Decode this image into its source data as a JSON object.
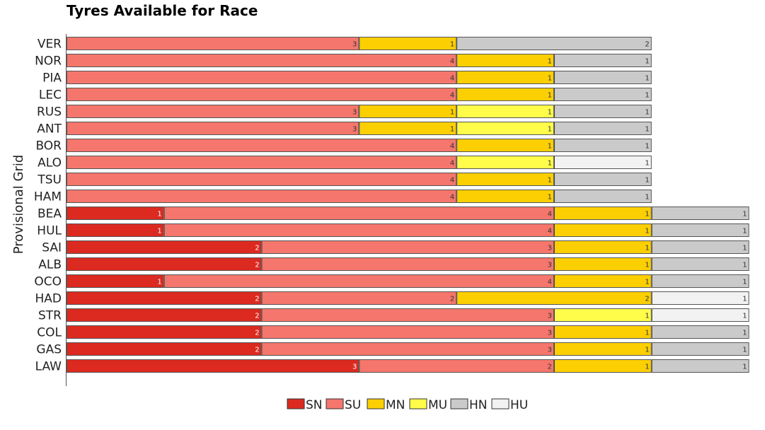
{
  "chart_data": {
    "type": "bar",
    "orientation": "horizontal",
    "stacked": true,
    "title": "Tyres Available for Race",
    "xlabel": "",
    "ylabel": "Provisional Grid",
    "xlim": [
      0,
      7
    ],
    "grid": false,
    "legend_position": "bottom",
    "categories": [
      "VER",
      "NOR",
      "PIA",
      "LEC",
      "RUS",
      "ANT",
      "BOR",
      "ALO",
      "TSU",
      "HAM",
      "BEA",
      "HUL",
      "SAI",
      "ALB",
      "OCO",
      "HAD",
      "STR",
      "COL",
      "GAS",
      "LAW"
    ],
    "series": [
      {
        "name": "SN",
        "color": "#dc2a20",
        "values": [
          0,
          0,
          0,
          0,
          0,
          0,
          0,
          0,
          0,
          0,
          1,
          1,
          2,
          2,
          1,
          2,
          2,
          2,
          2,
          3
        ]
      },
      {
        "name": "SU",
        "color": "#f5766c",
        "values": [
          3,
          4,
          4,
          4,
          3,
          3,
          4,
          4,
          4,
          4,
          4,
          4,
          3,
          3,
          4,
          2,
          3,
          3,
          3,
          2
        ]
      },
      {
        "name": "MN",
        "color": "#fccf02",
        "values": [
          1,
          1,
          1,
          1,
          1,
          1,
          1,
          0,
          1,
          1,
          1,
          1,
          1,
          1,
          1,
          2,
          0,
          1,
          1,
          1
        ]
      },
      {
        "name": "MU",
        "color": "#fffd4a",
        "values": [
          0,
          0,
          0,
          0,
          1,
          1,
          0,
          1,
          0,
          0,
          0,
          0,
          0,
          0,
          0,
          0,
          1,
          0,
          0,
          0
        ]
      },
      {
        "name": "HN",
        "color": "#cacaca",
        "values": [
          2,
          1,
          1,
          1,
          1,
          1,
          1,
          0,
          1,
          1,
          1,
          1,
          1,
          1,
          1,
          0,
          0,
          1,
          1,
          1
        ]
      },
      {
        "name": "HU",
        "color": "#f2f2f2",
        "values": [
          0,
          0,
          0,
          0,
          0,
          0,
          0,
          1,
          0,
          0,
          0,
          0,
          0,
          0,
          0,
          1,
          1,
          0,
          0,
          0
        ]
      }
    ]
  }
}
